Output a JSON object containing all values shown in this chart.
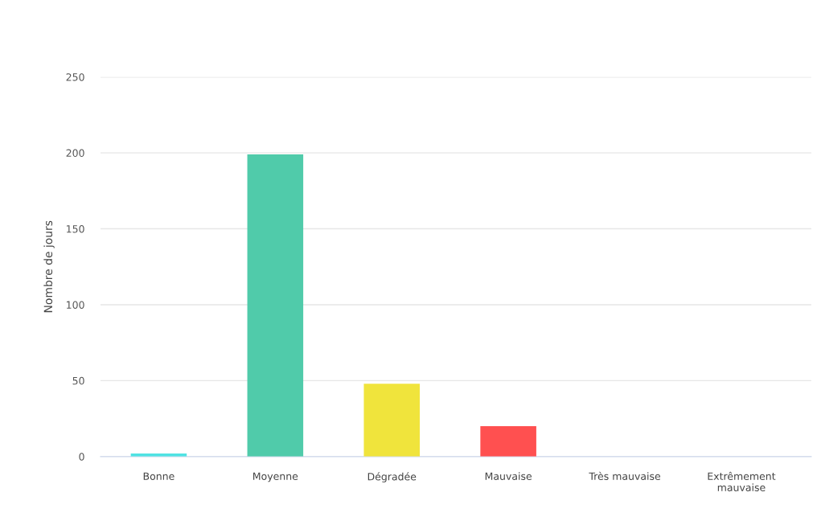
{
  "chart_data": {
    "type": "bar",
    "ylabel": "Nombre de jours",
    "categories": [
      "Bonne",
      "Moyenne",
      "Dégradée",
      "Mauvaise",
      "Très mauvaise",
      "Extrêmement mauvaise"
    ],
    "values": [
      2,
      199,
      48,
      20,
      0,
      0
    ],
    "colors": [
      "#50e3e3",
      "#50cbaa",
      "#f0e43c",
      "#ff5050",
      "#a0324b",
      "#823c96"
    ],
    "ylim": [
      0,
      250
    ],
    "yticks": [
      0,
      50,
      100,
      150,
      200,
      250
    ],
    "grid": "y",
    "legend": false
  }
}
